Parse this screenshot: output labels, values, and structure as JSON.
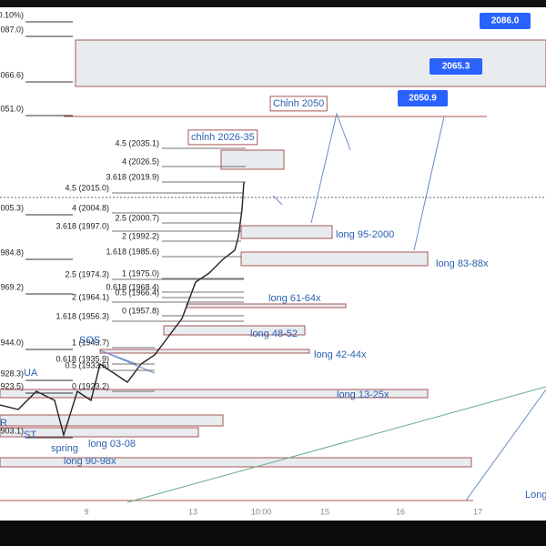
{
  "left_labels": [
    "0.10%)",
    "087.0)",
    "066.6)",
    "051.0)",
    "005.3)",
    "984.8)",
    "969.2)",
    "944.0)",
    "928.3)",
    "923.5)",
    "903.1)"
  ],
  "fib_labels": [
    "4.5 (2035.1)",
    "4 (2026.5)",
    "3.618 (2019.9)",
    "4.5 (2015.0)",
    "4 (2004.8)",
    "2.5 (2000.7)",
    "3.618 (1997.0)",
    "2 (1992.2)",
    "1.618 (1985.6)",
    "2.5 (1974.3)",
    "1 (1975.0)",
    "0.618 (1968.4)",
    "0.5 (1966.4)",
    "2 (1964.1)",
    "0 (1957.8)",
    "1.618 (1956.3)",
    "1 (1943.7)",
    "0.618 (1935.9)",
    "0.5 (1933.5)",
    "0 (1923.2)"
  ],
  "price_tags": [
    "2086.0",
    "2065.3",
    "2050.9"
  ],
  "notes": [
    "Chỉnh 2050",
    "chỉnh 2026-35",
    "long 95-2000",
    "long 83-88x",
    "long 61-64x",
    "long 48-52",
    "long 42-44x",
    "long 13-25x",
    "SOS",
    "UA",
    "ST",
    "spring",
    "long 03-08",
    "long 90-98x",
    "Long",
    "R"
  ],
  "x_axis": [
    "9",
    "13",
    "10:00",
    "15",
    "16",
    "17"
  ]
}
